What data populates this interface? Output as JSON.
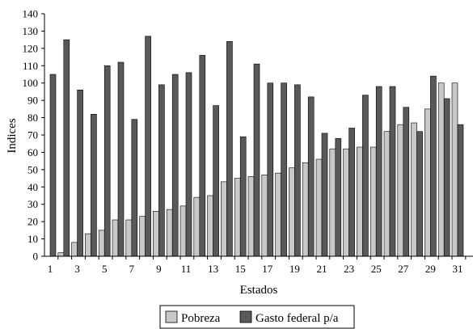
{
  "chart_data": {
    "type": "bar",
    "xlabel": "Estados",
    "ylabel": "Indices",
    "ylim": [
      0,
      140
    ],
    "yticks": [
      0,
      10,
      20,
      30,
      40,
      50,
      60,
      70,
      80,
      90,
      100,
      110,
      120,
      130,
      140
    ],
    "categories": [
      1,
      2,
      3,
      4,
      5,
      6,
      7,
      8,
      9,
      10,
      11,
      12,
      13,
      14,
      15,
      16,
      17,
      18,
      19,
      20,
      21,
      22,
      23,
      24,
      25,
      26,
      27,
      28,
      29,
      30,
      31
    ],
    "x_tick_labels": [
      "1",
      "3",
      "5",
      "7",
      "9",
      "11",
      "13",
      "15",
      "17",
      "19",
      "21",
      "23",
      "25",
      "27",
      "29",
      "31"
    ],
    "grid": false,
    "legend": "bottom",
    "series": [
      {
        "name": "Pobreza",
        "color": "#c8c8c8",
        "values": [
          0,
          2,
          8,
          13,
          15,
          21,
          21,
          23,
          26,
          27,
          29,
          34,
          35,
          43,
          45,
          46,
          47,
          48,
          51,
          54,
          56,
          62,
          62,
          63,
          63,
          72,
          76,
          77,
          85,
          100,
          100
        ]
      },
      {
        "name": "Gasto federal p/a",
        "color": "#595959",
        "values": [
          105,
          125,
          96,
          82,
          110,
          112,
          79,
          127,
          99,
          105,
          106,
          116,
          87,
          124,
          69,
          111,
          100,
          100,
          99,
          92,
          71,
          68,
          74,
          93,
          98,
          98,
          86,
          72,
          104,
          91,
          76
        ]
      }
    ]
  }
}
